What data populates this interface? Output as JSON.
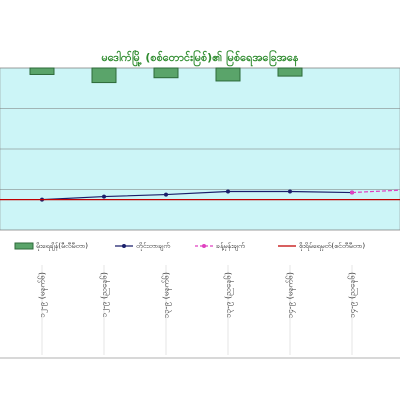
{
  "chart_data": {
    "type": "line",
    "title": "မဒေါက်မြို့ (စစ်တောင်းမြစ်)၏ မြစ်ရေအခြေအနေ",
    "categories": [
      "၁၂-၉ (မနက်၆)",
      "၁၂-၉ (ညနေ၆)",
      "၁၃-၉ (မနက်၆)",
      "၁၃-၉ (ညနေ၆)",
      "၁၄-၉ (မနက်၆)",
      "၁၄-၉ (ညနေ၆)",
      null
    ],
    "ylim": [
      0,
      400
    ],
    "yticks": [
      0,
      100,
      200,
      300,
      400
    ],
    "grid": true,
    "y2lim": [
      0,
      50
    ],
    "series": [
      {
        "name": "မိုးရေချိန်(မီလီမီတာ)",
        "color": "#5aa46a",
        "kind": "bar",
        "axis": "y2",
        "values": [
          2,
          4.5,
          3,
          4,
          2.5,
          null,
          null
        ]
      },
      {
        "name": "တိုင်းတာချက်",
        "color": "#1a1f6b",
        "kind": "line",
        "values": [
          75,
          82.5,
          87.5,
          95,
          95,
          92.5,
          null
        ]
      },
      {
        "name": "ခန့်မှန်းချက်",
        "color": "#e040c0",
        "kind": "dashed",
        "values": [
          null,
          null,
          null,
          null,
          null,
          92.5,
          100
        ]
      },
      {
        "name": "စိုးရိမ်ရေမှတ်(စင်တီမီတာ)",
        "color": "#c00000",
        "kind": "level",
        "values": [
          75,
          75,
          75,
          75,
          75,
          75,
          75
        ]
      }
    ]
  }
}
